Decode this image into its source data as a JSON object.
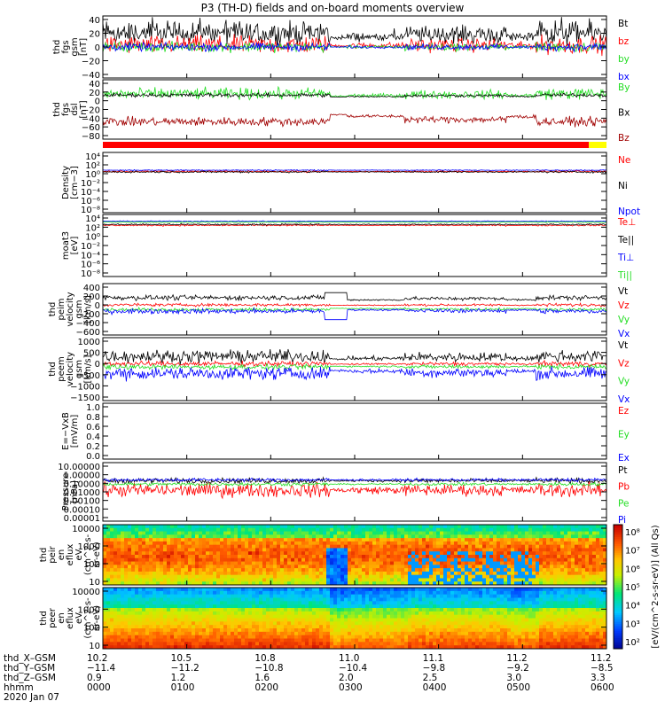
{
  "title": "P3 (TH-D) fields and on-board moments overview",
  "colors": {
    "black": "#000000",
    "red": "#ff0000",
    "green": "#22dd22",
    "blue": "#0000ff",
    "darkred": "#a00000",
    "yellow": "#ffff00"
  },
  "chart_data": [
    {
      "type": "line",
      "panel": "fgs-gsm",
      "ylabel": [
        "thd",
        "fgs",
        "gsm",
        "[nT]"
      ],
      "yticks": [
        "40",
        "20",
        "0",
        "−20",
        "−40"
      ],
      "ylim": [
        -40,
        40
      ],
      "series": [
        {
          "name": "Bt",
          "color": "#000000",
          "level": 20,
          "noise": 12
        },
        {
          "name": "bz",
          "color": "#ff0000",
          "level": 3,
          "noise": 9
        },
        {
          "name": "by",
          "color": "#22dd22",
          "level": 0,
          "noise": 5
        },
        {
          "name": "bx",
          "color": "#0000ff",
          "level": 0,
          "noise": 4
        }
      ]
    },
    {
      "type": "line",
      "panel": "fgs-dsl",
      "ylabel": [
        "thd",
        "fgs",
        "dsl",
        "[nT]"
      ],
      "yticks": [
        "40",
        "20",
        "0",
        "−20",
        "−40",
        "−60",
        "−80"
      ],
      "ylim": [
        -80,
        40
      ],
      "series": [
        {
          "name": "By",
          "color": "#22dd22",
          "level": 16,
          "noise": 9
        },
        {
          "name": "Bx",
          "color": "#000000",
          "level": 13,
          "noise": 3
        },
        {
          "name": "Bz",
          "color": "#a00000",
          "level": -48,
          "noise": 7
        }
      ]
    },
    {
      "type": "line",
      "panel": "density",
      "ylabel": [
        "Density",
        "[cm−3]"
      ],
      "yticks": [
        "10⁴",
        "10²",
        "10⁰",
        "10⁻²",
        "10⁻⁴",
        "10⁻⁶",
        "10⁻⁸"
      ],
      "ylim": [
        1e-08,
        10000.0
      ],
      "log": true,
      "series": [
        {
          "name": "Ne",
          "color": "#ff0000",
          "level": 0.5,
          "noise": 0.1
        },
        {
          "name": "Ni",
          "color": "#000000",
          "level": 0.4,
          "noise": 0.1
        },
        {
          "name": "Npot",
          "color": "#0000ff",
          "level": 0.8,
          "noise": 0.05
        }
      ]
    },
    {
      "type": "line",
      "panel": "temperature",
      "ylabel": [
        "moat3",
        "[eV]"
      ],
      "yticks": [
        "10⁴",
        "10²",
        "10⁰",
        "10⁻²",
        "10⁻⁴",
        "10⁻⁶",
        "10⁻⁸"
      ],
      "ylim": [
        1e-08,
        10000.0
      ],
      "log": true,
      "series": [
        {
          "name": "Te⊥",
          "color": "#ff0000",
          "level": 2.4,
          "noise": 0.08
        },
        {
          "name": "Te||",
          "color": "#000000",
          "level": 2.6,
          "noise": 0.08
        },
        {
          "name": "Ti⊥",
          "color": "#0000ff",
          "level": 3.3,
          "noise": 0.05
        },
        {
          "name": "Ti||",
          "color": "#22dd22",
          "level": 3.1,
          "noise": 0.05
        }
      ]
    },
    {
      "type": "line",
      "panel": "peim-velocity",
      "ylabel": [
        "thd",
        "peim",
        "velocity",
        "gsm",
        "[km/s]"
      ],
      "yticks": [
        "400",
        "200",
        "0",
        "−200",
        "−400",
        "−600"
      ],
      "ylim": [
        -600,
        450
      ],
      "series": [
        {
          "name": "Vt",
          "color": "#000000",
          "level": 200,
          "noise": 40
        },
        {
          "name": "Vz",
          "color": "#ff0000",
          "level": 30,
          "noise": 25
        },
        {
          "name": "Vy",
          "color": "#22dd22",
          "level": -80,
          "noise": 25
        },
        {
          "name": "Vx",
          "color": "#0000ff",
          "level": -120,
          "noise": 40
        }
      ]
    },
    {
      "type": "line",
      "panel": "peem-velocity",
      "ylabel": [
        "thd",
        "peem",
        "velocity",
        "gsm",
        "[km/s]"
      ],
      "yticks": [
        "1000",
        "500",
        "0",
        "−500",
        "−1000",
        "−1500"
      ],
      "ylim": [
        -1500,
        1100
      ],
      "series": [
        {
          "name": "Vt",
          "color": "#000000",
          "level": 400,
          "noise": 200
        },
        {
          "name": "Vz",
          "color": "#ff0000",
          "level": 50,
          "noise": 80
        },
        {
          "name": "Vy",
          "color": "#22dd22",
          "level": -100,
          "noise": 80
        },
        {
          "name": "Vx",
          "color": "#0000ff",
          "level": -400,
          "noise": 200
        }
      ]
    },
    {
      "type": "line",
      "panel": "efield",
      "ylabel": [
        "E=−VxB",
        "[mV/m]"
      ],
      "yticks": [
        "1.0",
        "0.8",
        "0.6",
        "0.4",
        "0.2",
        "0.0"
      ],
      "ylim": [
        0,
        1
      ],
      "series": [
        {
          "name": "Ez",
          "color": "#ff0000"
        },
        {
          "name": "Ey",
          "color": "#22dd22"
        },
        {
          "name": "Ex",
          "color": "#0000ff"
        }
      ]
    },
    {
      "type": "line",
      "panel": "pressure",
      "ylabel": [
        "Pressure",
        "[nPa]"
      ],
      "yticks": [
        "10.00000",
        "1.00000",
        "0.10000",
        "0.01000",
        "0.00100",
        "0.00010",
        "0.00001"
      ],
      "ylim": [
        1e-05,
        10
      ],
      "log": true,
      "series": [
        {
          "name": "Pt",
          "color": "#000000",
          "level": -0.7,
          "noise": 0.15
        },
        {
          "name": "Pb",
          "color": "#ff0000",
          "level": -1.8,
          "noise": 0.4
        },
        {
          "name": "Pe",
          "color": "#22dd22",
          "level": -1.1,
          "noise": 0.1
        },
        {
          "name": "Pi",
          "color": "#0000ff",
          "level": -0.6,
          "noise": 0.1
        }
      ]
    },
    {
      "type": "heatmap",
      "panel": "peir-eflux",
      "ylabel": [
        "thd",
        "peir",
        "en",
        "eflux",
        "eV",
        "(cm^2-s-",
        "sr-eV)"
      ],
      "yticks": [
        "10000",
        "1000",
        "100",
        "10"
      ],
      "ylim": [
        5,
        25000
      ],
      "log": true
    },
    {
      "type": "heatmap",
      "panel": "peer-eflux",
      "ylabel": [
        "thd",
        "peer",
        "en",
        "eflux",
        "eV",
        "(cm^2-s-",
        "sr-eV)"
      ],
      "yticks": [
        "10000",
        "1000",
        "100",
        "10"
      ],
      "ylim": [
        5,
        25000
      ],
      "log": true
    }
  ],
  "colorbar": {
    "ticks": [
      "10⁸",
      "10⁷",
      "10⁶",
      "10⁵",
      "10⁴",
      "10³",
      "10²"
    ],
    "label": "[eV/(cm^2-s-sr-eV)] (All Qs)"
  },
  "ephemeris": {
    "labels": [
      "thd_X–GSM",
      "thd_Y–GSM",
      "thd_Z–GSM",
      "hhmm",
      "2020 Jan 07"
    ],
    "columns": [
      {
        "x": "10.2",
        "y": "−11.4",
        "z": "0.9",
        "t": "0000"
      },
      {
        "x": "10.5",
        "y": "−11.2",
        "z": "1.2",
        "t": "0100"
      },
      {
        "x": "10.8",
        "y": "−10.8",
        "z": "1.6",
        "t": "0200"
      },
      {
        "x": "11.0",
        "y": "−10.4",
        "z": "2.0",
        "t": "0300"
      },
      {
        "x": "11.1",
        "y": "−9.8",
        "z": "2.5",
        "t": "0400"
      },
      {
        "x": "11.2",
        "y": "−9.2",
        "z": "3.0",
        "t": "0500"
      },
      {
        "x": "11.2",
        "y": "−8.5",
        "z": "3.3",
        "t": "0600"
      }
    ]
  }
}
